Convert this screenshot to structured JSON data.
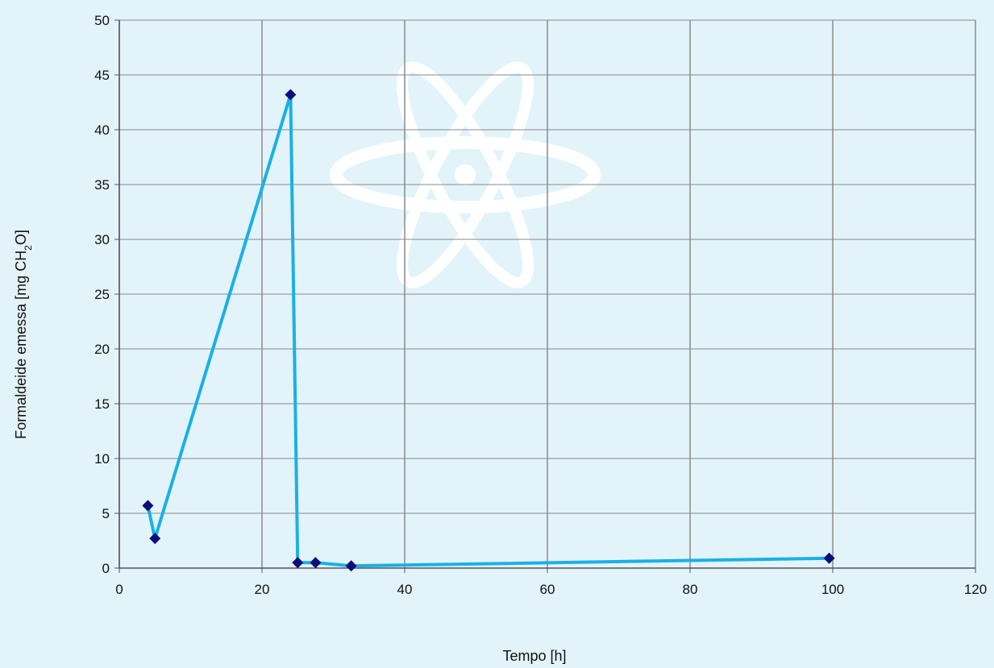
{
  "chart_data": {
    "type": "line",
    "title": "",
    "xlabel": "Tempo [h]",
    "ylabel": {
      "prefix": "Formaldeide emessa [mg CH",
      "subscript": "2",
      "suffix": "O]"
    },
    "xlim": [
      0,
      120
    ],
    "ylim": [
      0,
      50
    ],
    "xticks": [
      0,
      20,
      40,
      60,
      80,
      100,
      120
    ],
    "yticks": [
      0,
      5,
      10,
      15,
      20,
      25,
      30,
      35,
      40,
      45,
      50
    ],
    "grid": true,
    "legend": "none",
    "series": [
      {
        "x": [
          4,
          5,
          24,
          25,
          27.5,
          32.5,
          99.5
        ],
        "y": [
          5.7,
          2.7,
          43.2,
          0.5,
          0.5,
          0.2,
          0.9
        ]
      }
    ],
    "colors": {
      "background": "#e3f3fa",
      "plot_background": "#e3f3fa",
      "grid": "#8a8a8a",
      "line": "#1ab0e6",
      "marker": "#0c0c7a",
      "watermark": "#ffffff"
    },
    "watermark_icon": "atom-icon"
  }
}
